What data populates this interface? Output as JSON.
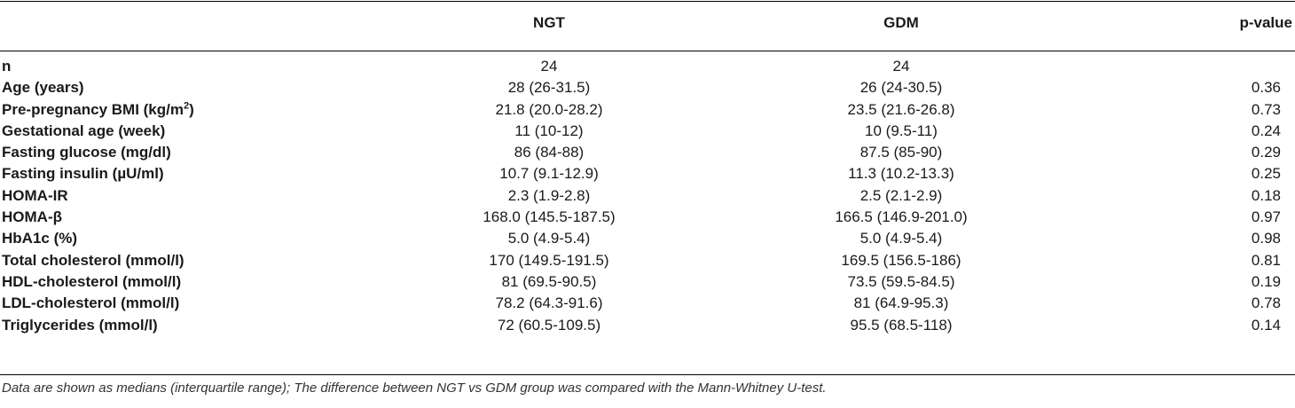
{
  "header": {
    "col1": "",
    "ngt": "NGT",
    "gdm": "GDM",
    "p": "p-value"
  },
  "rows": [
    {
      "label": "n",
      "sup": "",
      "ngt": "24",
      "gdm": "24",
      "p": ""
    },
    {
      "label": "Age (years)",
      "sup": "",
      "ngt": "28 (26-31.5)",
      "gdm": "26 (24-30.5)",
      "p": "0.36"
    },
    {
      "label": "Pre-pregnancy BMI (kg/m",
      "sup": "2",
      "label_end": ")",
      "ngt": "21.8 (20.0-28.2)",
      "gdm": "23.5 (21.6-26.8)",
      "p": "0.73"
    },
    {
      "label": "Gestational age (week)",
      "sup": "",
      "ngt": "11 (10-12)",
      "gdm": "10 (9.5-11)",
      "p": "0.24"
    },
    {
      "label": "Fasting glucose (mg/dl)",
      "sup": "",
      "ngt": "86 (84-88)",
      "gdm": "87.5 (85-90)",
      "p": "0.29"
    },
    {
      "label": "Fasting insulin (µU/ml)",
      "sup": "",
      "ngt": "10.7 (9.1-12.9)",
      "gdm": "11.3 (10.2-13.3)",
      "p": "0.25"
    },
    {
      "label": "HOMA-IR",
      "sup": "",
      "ngt": "2.3 (1.9-2.8)",
      "gdm": "2.5 (2.1-2.9)",
      "p": "0.18"
    },
    {
      "label": "HOMA-β",
      "sup": "",
      "ngt": "168.0 (145.5-187.5)",
      "gdm": "166.5 (146.9-201.0)",
      "p": "0.97"
    },
    {
      "label": "HbA1c (%)",
      "sup": "",
      "ngt": "5.0 (4.9-5.4)",
      "gdm": "5.0 (4.9-5.4)",
      "p": "0.98"
    },
    {
      "label": "Total cholesterol (mmol/l)",
      "sup": "",
      "ngt": "170 (149.5-191.5)",
      "gdm": "169.5 (156.5-186)",
      "p": "0.81"
    },
    {
      "label": "HDL-cholesterol (mmol/l)",
      "sup": "",
      "ngt": "81 (69.5-90.5)",
      "gdm": "73.5 (59.5-84.5)",
      "p": "0.19"
    },
    {
      "label": "LDL-cholesterol (mmol/l)",
      "sup": "",
      "ngt": "78.2 (64.3-91.6)",
      "gdm": "81 (64.9-95.3)",
      "p": "0.78"
    },
    {
      "label": "Triglycerides (mmol/l)",
      "sup": "",
      "ngt": "72 (60.5-109.5)",
      "gdm": "95.5 (68.5-118)",
      "p": "0.14"
    }
  ],
  "footnote": "Data are shown as medians (interquartile range); The difference between NGT vs GDM group was compared with the Mann-Whitney U-test."
}
